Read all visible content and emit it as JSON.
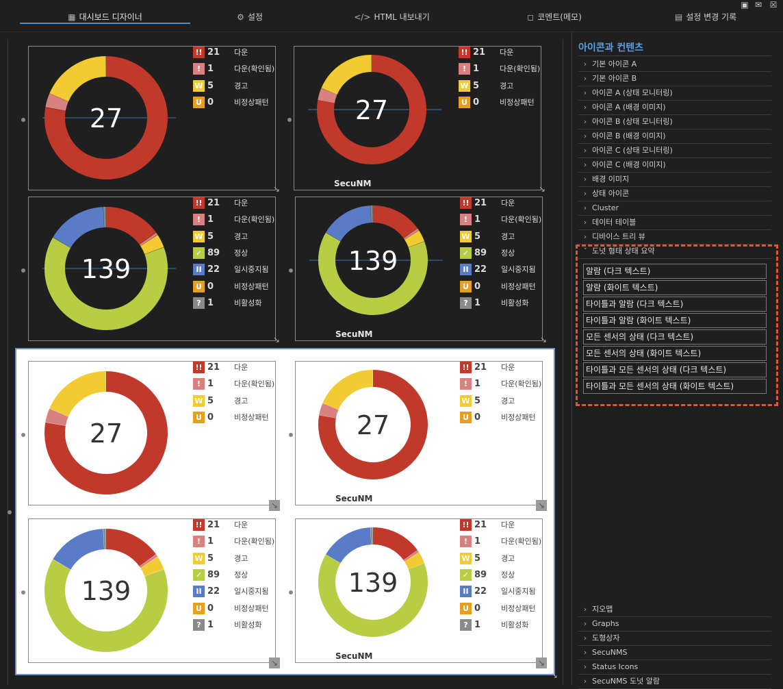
{
  "tabs": [
    {
      "label": "대시보드 디자이너",
      "icon": "dashboard-icon"
    },
    {
      "label": "설정",
      "icon": "gear-icon"
    },
    {
      "label": "HTML 내보내기",
      "icon": "code-icon"
    },
    {
      "label": "코멘트(메모)",
      "icon": "comment-icon"
    },
    {
      "label": "설정 변경 기록",
      "icon": "history-icon"
    }
  ],
  "toolbar_icons": [
    "export-file-icon",
    "mail-icon",
    "trash-icon"
  ],
  "colors": {
    "down": "#c0392b",
    "down_ack": "#d98080",
    "warning": "#f2ca32",
    "unusual": "#e6a020",
    "up": "#b8cc44",
    "paused": "#5a7cc6",
    "inactive": "#8a8a8a",
    "accent": "#4a90d9",
    "dashed": "#e0572b"
  },
  "widget_small": {
    "total": "27",
    "segments": [
      {
        "key": "down",
        "value": 21
      },
      {
        "key": "down_ack",
        "value": 1
      },
      {
        "key": "warning",
        "value": 5
      }
    ],
    "legend": [
      {
        "sym": "!!",
        "key": "down",
        "count": "21",
        "label": "다운"
      },
      {
        "sym": "!",
        "key": "down_ack",
        "count": "1",
        "label": "다운(확인됨)"
      },
      {
        "sym": "W",
        "key": "warning",
        "count": "5",
        "label": "경고"
      },
      {
        "sym": "U",
        "key": "unusual",
        "count": "0",
        "label": "비정상패턴"
      }
    ]
  },
  "widget_large": {
    "total": "139",
    "segments": [
      {
        "key": "down",
        "value": 21
      },
      {
        "key": "down_ack",
        "value": 1
      },
      {
        "key": "warning",
        "value": 5
      },
      {
        "key": "up",
        "value": 89
      },
      {
        "key": "paused",
        "value": 22
      },
      {
        "key": "inactive",
        "value": 1
      }
    ],
    "legend": [
      {
        "sym": "!!",
        "key": "down",
        "count": "21",
        "label": "다운"
      },
      {
        "sym": "!",
        "key": "down_ack",
        "count": "1",
        "label": "다운(확인됨)"
      },
      {
        "sym": "W",
        "key": "warning",
        "count": "5",
        "label": "경고"
      },
      {
        "sym": "✓",
        "key": "up",
        "count": "89",
        "label": "정상"
      },
      {
        "sym": "II",
        "key": "paused",
        "count": "22",
        "label": "일시중지됨"
      },
      {
        "sym": "U",
        "key": "unusual",
        "count": "0",
        "label": "비정상패턴"
      },
      {
        "sym": "?",
        "key": "inactive",
        "count": "1",
        "label": "비활성화"
      }
    ]
  },
  "brand_label": "SecuNM",
  "sidebar": {
    "title": "아이콘과 컨텐츠",
    "items_top": [
      "기본 아이콘 A",
      "기본 아이콘 B",
      "아이콘 A (상태 모니터링)",
      "아이콘 A (배경 이미지)",
      "아이콘 B (상태 모니터링)",
      "아이콘 B (배경 이미지)",
      "아이콘 C (상태 모니터링)",
      "아이콘 C (배경 이미지)",
      "배경 이미지",
      "상태 아이콘",
      "Cluster",
      "데이터 테이블",
      "디바이스 트리 뷰"
    ],
    "expanded_item": "도넛 형태 상태 요약",
    "sub_items": [
      "알람 (다크 텍스트)",
      "알람 (화이트 텍스트)",
      "타이틀과 알람 (다크 텍스트)",
      "타이틀과 알람 (화이트 텍스트)",
      "모든 센서의 상태 (다크 텍스트)",
      "모든 센서의 상태 (화이트 텍스트)",
      "타이틀과 모든 센서의 상태 (다크 텍스트)",
      "타이틀과 모든 센서의 상태 (화이트 텍스트)"
    ],
    "items_bottom": [
      "지오맵",
      "Graphs",
      "도형상자",
      "SecuNMS",
      "Status Icons",
      "SecuNMS 도넛 알람"
    ]
  }
}
